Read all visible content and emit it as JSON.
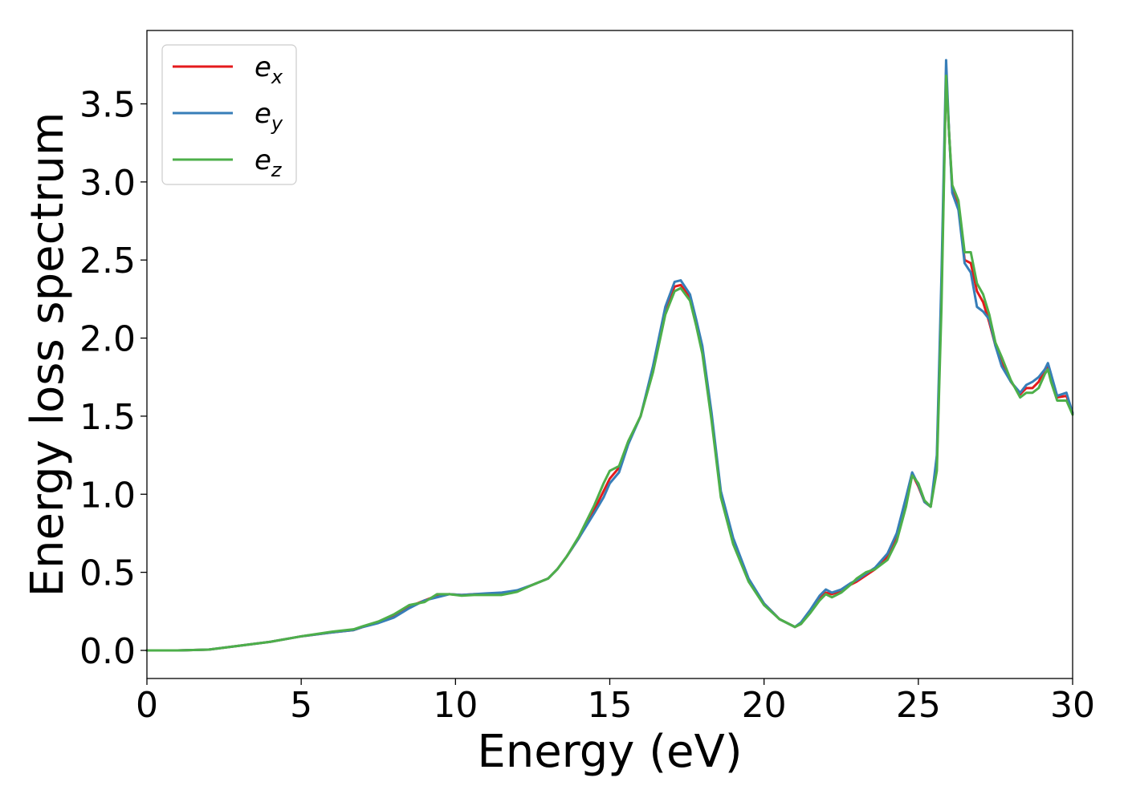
{
  "chart_data": {
    "type": "line",
    "title": "",
    "xlabel": "Energy (eV)",
    "ylabel": "Energy loss spectrum",
    "xlim": [
      0,
      30
    ],
    "ylim": [
      -0.18,
      3.97
    ],
    "xticks": [
      "0",
      "5",
      "10",
      "15",
      "20",
      "25",
      "30"
    ],
    "yticks": [
      "0.0",
      "0.5",
      "1.0",
      "1.5",
      "2.0",
      "2.5",
      "3.0",
      "3.5"
    ],
    "grid": false,
    "legend_position": "top-left",
    "series": [
      {
        "name": "e",
        "subscript": "x",
        "color": "#e41a1c",
        "x": [
          0,
          1,
          2,
          3,
          4,
          5,
          6,
          6.7,
          7,
          7.5,
          8,
          8.5,
          9,
          9.4,
          9.8,
          10.2,
          10.6,
          11,
          11.5,
          12,
          12.5,
          13,
          13.3,
          13.6,
          14,
          14.5,
          14.8,
          15,
          15.3,
          15.6,
          16,
          16.4,
          16.8,
          17.1,
          17.3,
          17.6,
          17.8,
          18,
          18.3,
          18.6,
          19,
          19.5,
          20,
          20.5,
          21,
          21.2,
          21.5,
          21.8,
          22,
          22.2,
          22.5,
          22.8,
          23,
          23.3,
          23.6,
          24,
          24.3,
          24.6,
          24.8,
          25,
          25.2,
          25.4,
          25.6,
          25.75,
          25.9,
          26,
          26.1,
          26.3,
          26.5,
          26.7,
          26.9,
          27.1,
          27.3,
          27.5,
          27.7,
          28,
          28.3,
          28.5,
          28.7,
          28.9,
          29.1,
          29.2,
          29.3,
          29.5,
          29.8,
          30
        ],
        "values": [
          0,
          0,
          0.005,
          0.03,
          0.055,
          0.09,
          0.115,
          0.13,
          0.15,
          0.18,
          0.22,
          0.28,
          0.32,
          0.35,
          0.36,
          0.355,
          0.36,
          0.36,
          0.36,
          0.38,
          0.42,
          0.46,
          0.52,
          0.6,
          0.72,
          0.9,
          1.02,
          1.1,
          1.17,
          1.33,
          1.5,
          1.8,
          2.18,
          2.33,
          2.34,
          2.26,
          2.1,
          1.93,
          1.5,
          1.0,
          0.7,
          0.45,
          0.3,
          0.2,
          0.15,
          0.17,
          0.25,
          0.33,
          0.37,
          0.36,
          0.38,
          0.42,
          0.44,
          0.48,
          0.52,
          0.6,
          0.72,
          0.95,
          1.13,
          1.05,
          0.95,
          0.92,
          1.2,
          2.3,
          3.7,
          3.3,
          2.95,
          2.85,
          2.5,
          2.48,
          2.3,
          2.23,
          2.1,
          1.95,
          1.84,
          1.72,
          1.64,
          1.68,
          1.68,
          1.72,
          1.8,
          1.82,
          1.75,
          1.62,
          1.63,
          1.52
        ]
      },
      {
        "name": "e",
        "subscript": "y",
        "color": "#377eb8",
        "x": [
          0,
          1,
          2,
          3,
          4,
          5,
          6,
          6.7,
          7,
          7.5,
          8,
          8.5,
          9,
          9.4,
          9.8,
          10.2,
          10.6,
          11,
          11.5,
          12,
          12.5,
          13,
          13.3,
          13.6,
          14,
          14.5,
          14.8,
          15,
          15.3,
          15.6,
          16,
          16.4,
          16.8,
          17.1,
          17.3,
          17.6,
          17.8,
          18,
          18.3,
          18.6,
          19,
          19.5,
          20,
          20.5,
          21,
          21.2,
          21.5,
          21.8,
          22,
          22.2,
          22.5,
          22.8,
          23,
          23.3,
          23.6,
          24,
          24.3,
          24.6,
          24.8,
          25,
          25.2,
          25.4,
          25.6,
          25.75,
          25.9,
          26,
          26.1,
          26.3,
          26.5,
          26.7,
          26.9,
          27.1,
          27.3,
          27.5,
          27.7,
          28,
          28.3,
          28.5,
          28.7,
          28.9,
          29.1,
          29.2,
          29.3,
          29.5,
          29.8,
          30
        ],
        "values": [
          0,
          0,
          0.005,
          0.03,
          0.055,
          0.09,
          0.115,
          0.13,
          0.15,
          0.175,
          0.21,
          0.27,
          0.32,
          0.34,
          0.36,
          0.355,
          0.36,
          0.365,
          0.37,
          0.385,
          0.42,
          0.46,
          0.52,
          0.6,
          0.72,
          0.88,
          0.98,
          1.07,
          1.14,
          1.32,
          1.5,
          1.82,
          2.2,
          2.36,
          2.37,
          2.28,
          2.12,
          1.95,
          1.52,
          1.02,
          0.72,
          0.46,
          0.3,
          0.2,
          0.15,
          0.18,
          0.26,
          0.35,
          0.39,
          0.37,
          0.39,
          0.43,
          0.45,
          0.49,
          0.53,
          0.62,
          0.75,
          0.98,
          1.14,
          1.06,
          0.95,
          0.92,
          1.25,
          2.4,
          3.78,
          3.3,
          2.93,
          2.82,
          2.48,
          2.42,
          2.2,
          2.17,
          2.12,
          1.95,
          1.82,
          1.72,
          1.65,
          1.7,
          1.72,
          1.75,
          1.8,
          1.84,
          1.77,
          1.63,
          1.65,
          1.52
        ]
      },
      {
        "name": "e",
        "subscript": "z",
        "color": "#4daf4a",
        "x": [
          0,
          1,
          2,
          3,
          4,
          5,
          6,
          6.7,
          7,
          7.5,
          8,
          8.5,
          9,
          9.4,
          9.8,
          10.2,
          10.6,
          11,
          11.5,
          12,
          12.5,
          13,
          13.3,
          13.6,
          14,
          14.5,
          14.8,
          15,
          15.3,
          15.6,
          16,
          16.4,
          16.8,
          17.1,
          17.3,
          17.6,
          17.8,
          18,
          18.3,
          18.6,
          19,
          19.5,
          20,
          20.5,
          21,
          21.2,
          21.5,
          21.8,
          22,
          22.2,
          22.5,
          22.8,
          23,
          23.3,
          23.6,
          24,
          24.3,
          24.6,
          24.8,
          25,
          25.2,
          25.4,
          25.6,
          25.75,
          25.9,
          26,
          26.1,
          26.3,
          26.5,
          26.7,
          26.9,
          27.1,
          27.3,
          27.5,
          27.7,
          28,
          28.3,
          28.5,
          28.7,
          28.9,
          29.1,
          29.2,
          29.3,
          29.5,
          29.8,
          30
        ],
        "values": [
          0,
          0,
          0.005,
          0.03,
          0.055,
          0.09,
          0.12,
          0.135,
          0.155,
          0.185,
          0.23,
          0.29,
          0.31,
          0.36,
          0.36,
          0.35,
          0.355,
          0.355,
          0.355,
          0.375,
          0.42,
          0.46,
          0.52,
          0.6,
          0.73,
          0.93,
          1.07,
          1.15,
          1.18,
          1.34,
          1.5,
          1.78,
          2.15,
          2.3,
          2.32,
          2.24,
          2.08,
          1.9,
          1.47,
          0.98,
          0.68,
          0.44,
          0.29,
          0.2,
          0.15,
          0.17,
          0.24,
          0.32,
          0.36,
          0.34,
          0.37,
          0.42,
          0.46,
          0.5,
          0.52,
          0.58,
          0.7,
          0.92,
          1.12,
          1.07,
          0.96,
          0.92,
          1.15,
          2.2,
          3.68,
          3.3,
          2.98,
          2.88,
          2.55,
          2.55,
          2.35,
          2.28,
          2.15,
          1.97,
          1.88,
          1.73,
          1.62,
          1.65,
          1.65,
          1.68,
          1.77,
          1.8,
          1.72,
          1.6,
          1.6,
          1.51
        ]
      }
    ]
  }
}
